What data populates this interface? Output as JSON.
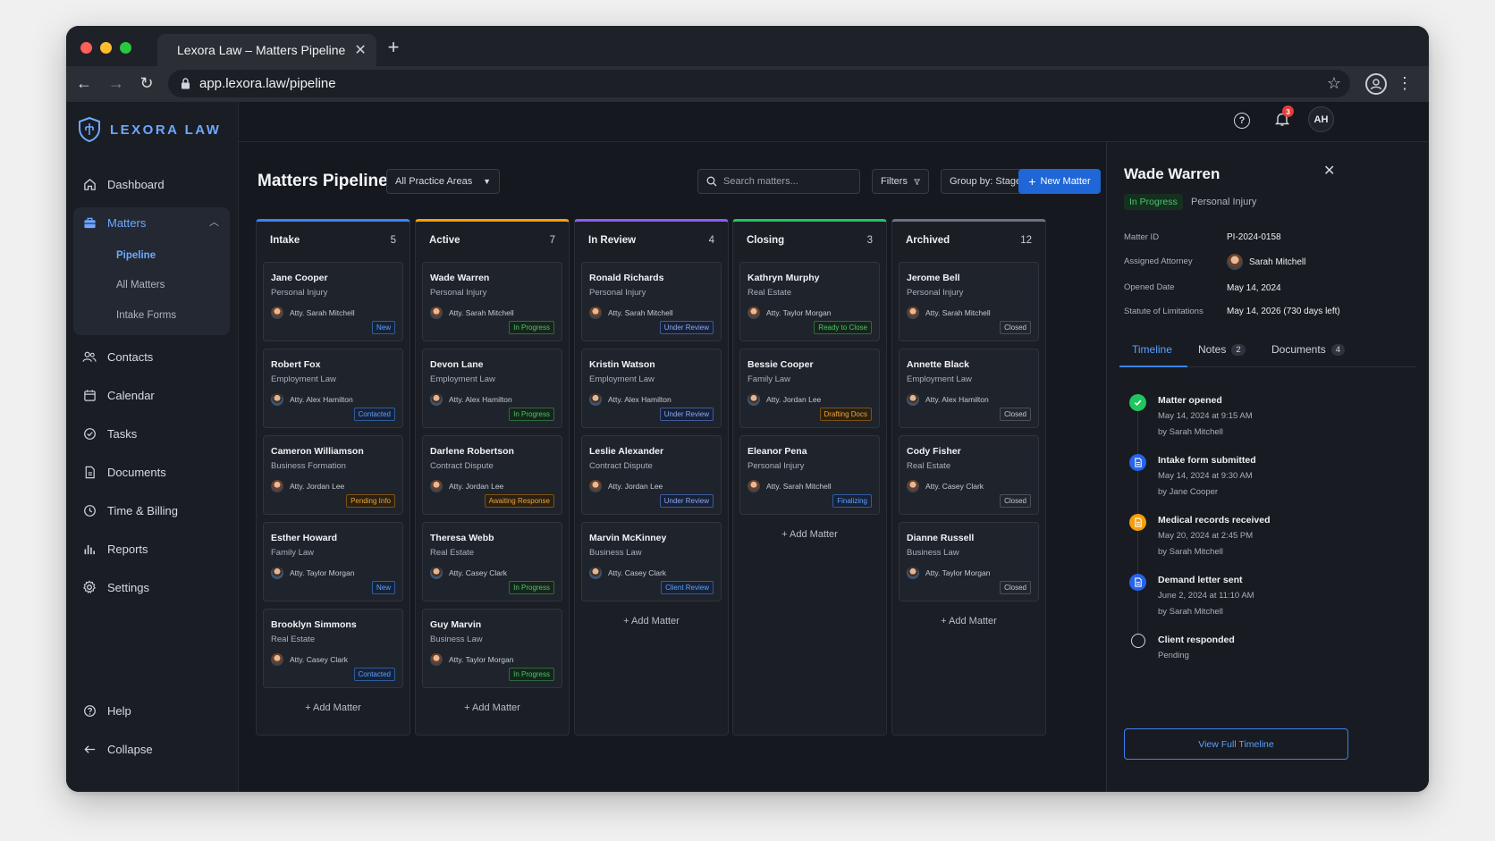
{
  "browser": {
    "tab_title": "Lexora Law – Matters Pipeline",
    "url": "app.lexora.law/pipeline",
    "traffic_lights": [
      "#ff5f57",
      "#febc2e",
      "#28c840"
    ]
  },
  "brand": {
    "name": "LEXORA LAW",
    "accent": "#6ea8ff"
  },
  "sidebar": {
    "items": [
      {
        "label": "Dashboard",
        "icon": "home-icon"
      },
      {
        "label": "Matters",
        "icon": "briefcase-icon"
      },
      {
        "label": "Contacts",
        "icon": "users-icon"
      },
      {
        "label": "Calendar",
        "icon": "calendar-icon"
      },
      {
        "label": "Tasks",
        "icon": "check-circle-icon"
      },
      {
        "label": "Documents",
        "icon": "document-icon"
      },
      {
        "label": "Time & Billing",
        "icon": "clock-icon"
      },
      {
        "label": "Reports",
        "icon": "bar-chart-icon"
      },
      {
        "label": "Settings",
        "icon": "gear-icon"
      }
    ],
    "sub_items": [
      "Pipeline",
      "All Matters",
      "Intake Forms"
    ],
    "help": "Help",
    "collapse": "Collapse"
  },
  "topbar": {
    "notification_count": "3",
    "avatar_initials": "AH"
  },
  "main": {
    "title": "Matters Pipeline",
    "practice_filter": "All Practice Areas",
    "search_placeholder": "Search matters...",
    "filters_label": "Filters",
    "group_by": "Group by: Stage",
    "new_matter": "New Matter",
    "add_matter": "Add Matter"
  },
  "columns": [
    {
      "name": "Intake",
      "count": "5",
      "color": "#3b82f6",
      "cards": [
        {
          "name": "Jane Cooper",
          "type": "Personal Injury",
          "attorney": "Atty. Sarah Mitchell",
          "status": "New",
          "tone": "new"
        },
        {
          "name": "Robert Fox",
          "type": "Employment Law",
          "attorney": "Atty. Alex Hamilton",
          "status": "Contacted",
          "tone": "new"
        },
        {
          "name": "Cameron Williamson",
          "type": "Business Formation",
          "attorney": "Atty. Jordan Lee",
          "status": "Pending Info",
          "tone": "pend"
        },
        {
          "name": "Esther Howard",
          "type": "Family Law",
          "attorney": "Atty. Taylor Morgan",
          "status": "New",
          "tone": "new"
        },
        {
          "name": "Brooklyn Simmons",
          "type": "Real Estate",
          "attorney": "Atty. Casey Clark",
          "status": "Contacted",
          "tone": "new"
        }
      ]
    },
    {
      "name": "Active",
      "count": "7",
      "color": "#f59e0b",
      "cards": [
        {
          "name": "Wade Warren",
          "type": "Personal Injury",
          "attorney": "Atty. Sarah Mitchell",
          "status": "In Progress",
          "tone": "prog"
        },
        {
          "name": "Devon Lane",
          "type": "Employment Law",
          "attorney": "Atty. Alex Hamilton",
          "status": "In Progress",
          "tone": "prog"
        },
        {
          "name": "Darlene Robertson",
          "type": "Contract Dispute",
          "attorney": "Atty. Jordan Lee",
          "status": "Awaiting Response",
          "tone": "pend"
        },
        {
          "name": "Theresa Webb",
          "type": "Real Estate",
          "attorney": "Atty. Casey Clark",
          "status": "In Progress",
          "tone": "prog"
        },
        {
          "name": "Guy Marvin",
          "type": "Business Law",
          "attorney": "Atty. Taylor Morgan",
          "status": "In Progress",
          "tone": "prog"
        }
      ]
    },
    {
      "name": "In Review",
      "count": "4",
      "color": "#8b5cf6",
      "cards": [
        {
          "name": "Ronald Richards",
          "type": "Personal Injury",
          "attorney": "Atty. Sarah Mitchell",
          "status": "Under Review",
          "tone": "rev"
        },
        {
          "name": "Kristin Watson",
          "type": "Employment Law",
          "attorney": "Atty. Alex Hamilton",
          "status": "Under Review",
          "tone": "rev"
        },
        {
          "name": "Leslie Alexander",
          "type": "Contract Dispute",
          "attorney": "Atty. Jordan Lee",
          "status": "Under Review",
          "tone": "rev"
        },
        {
          "name": "Marvin McKinney",
          "type": "Business Law",
          "attorney": "Atty. Casey Clark",
          "status": "Client Review",
          "tone": "new"
        }
      ]
    },
    {
      "name": "Closing",
      "count": "3",
      "color": "#22c55e",
      "cards": [
        {
          "name": "Kathryn Murphy",
          "type": "Real Estate",
          "attorney": "Atty. Taylor Morgan",
          "status": "Ready to Close",
          "tone": "prog"
        },
        {
          "name": "Bessie Cooper",
          "type": "Family Law",
          "attorney": "Atty. Jordan Lee",
          "status": "Drafting Docs",
          "tone": "pend"
        },
        {
          "name": "Eleanor Pena",
          "type": "Personal Injury",
          "attorney": "Atty. Sarah Mitchell",
          "status": "Finalizing",
          "tone": "new"
        }
      ]
    },
    {
      "name": "Archived",
      "count": "12",
      "color": "#6b7280",
      "cards": [
        {
          "name": "Jerome Bell",
          "type": "Personal Injury",
          "attorney": "Atty. Sarah Mitchell",
          "status": "Closed",
          "tone": "closed"
        },
        {
          "name": "Annette Black",
          "type": "Employment Law",
          "attorney": "Atty. Alex Hamilton",
          "status": "Closed",
          "tone": "closed"
        },
        {
          "name": "Cody Fisher",
          "type": "Real Estate",
          "attorney": "Atty. Casey Clark",
          "status": "Closed",
          "tone": "closed"
        },
        {
          "name": "Dianne Russell",
          "type": "Business Law",
          "attorney": "Atty. Taylor Morgan",
          "status": "Closed",
          "tone": "closed"
        }
      ]
    }
  ],
  "panel": {
    "name": "Wade Warren",
    "status": "In Progress",
    "area": "Personal Injury",
    "fields": [
      {
        "label": "Matter ID",
        "value": "PI-2024-0158"
      },
      {
        "label": "Assigned Attorney",
        "value": "Sarah Mitchell"
      },
      {
        "label": "Opened Date",
        "value": "May 14, 2024"
      },
      {
        "label": "Statute of Limitations",
        "value": "May 14, 2026 (730 days left)"
      }
    ],
    "tabs": [
      {
        "label": "Timeline",
        "count": ""
      },
      {
        "label": "Notes",
        "count": "2"
      },
      {
        "label": "Documents",
        "count": "4"
      }
    ],
    "timeline": [
      {
        "title": "Matter opened",
        "date": "May 14, 2024 at 9:15 AM",
        "by": "by Sarah Mitchell",
        "kind": "done",
        "color": "#22c55e"
      },
      {
        "title": "Intake form submitted",
        "date": "May 14, 2024 at 9:30 AM",
        "by": "by Jane Cooper",
        "kind": "doc",
        "color": "#2563eb"
      },
      {
        "title": "Medical records received",
        "date": "May 20, 2024 at 2:45 PM",
        "by": "by Sarah Mitchell",
        "kind": "doc",
        "color": "#f59e0b"
      },
      {
        "title": "Demand letter sent",
        "date": "June 2, 2024 at 11:10 AM",
        "by": "by Sarah Mitchell",
        "kind": "doc",
        "color": "#2563eb"
      },
      {
        "title": "Client responded",
        "date": "Pending",
        "by": "",
        "kind": "pending",
        "color": "#cfd3da"
      }
    ],
    "view_full": "View Full Timeline"
  }
}
